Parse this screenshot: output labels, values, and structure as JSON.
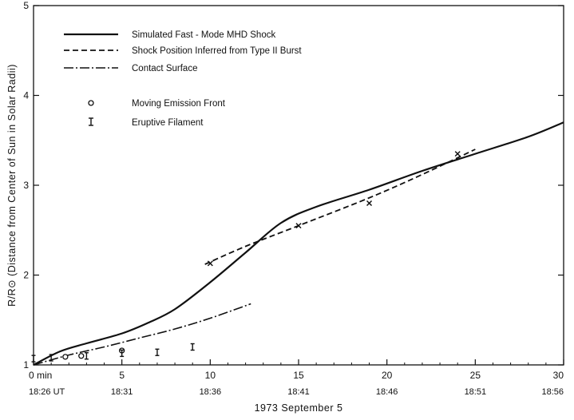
{
  "chart_data": {
    "type": "line",
    "title": "",
    "xlabel": "1973  September 5",
    "ylabel": "R/R⊙  (Distance from Center of Sun in Solar Radii)",
    "xlim": [
      0,
      30
    ],
    "ylim": [
      1,
      5
    ],
    "grid": false,
    "legend_position": "top-left",
    "x_ticks": [
      0,
      5,
      10,
      15,
      20,
      25,
      30
    ],
    "x_tick_labels": [
      "0 min",
      "5",
      "10",
      "15",
      "20",
      "25",
      "30"
    ],
    "x_time_labels": [
      "18:26 UT",
      "18:31",
      "18:36",
      "18:41",
      "18:46",
      "18:51",
      "18:56"
    ],
    "y_ticks": [
      1,
      2,
      3,
      4,
      5
    ],
    "y_tick_labels": [
      "1",
      "2",
      "3",
      "4",
      "5"
    ],
    "series": [
      {
        "name": "Simulated Fast - Mode MHD Shock",
        "style": "solid",
        "x": [
          0,
          1.5,
          3,
          5,
          6.5,
          8,
          10,
          12,
          14,
          16,
          19,
          22,
          25,
          28,
          30
        ],
        "y": [
          1.0,
          1.15,
          1.24,
          1.35,
          1.47,
          1.62,
          1.92,
          2.25,
          2.58,
          2.76,
          2.95,
          3.16,
          3.35,
          3.54,
          3.7
        ]
      },
      {
        "name": "Shock Position Inferred from Type II Burst",
        "style": "dashed",
        "x": [
          9.7,
          12,
          15,
          19,
          22,
          25
        ],
        "y": [
          2.12,
          2.32,
          2.55,
          2.86,
          3.12,
          3.4
        ]
      },
      {
        "name": "Contact Surface",
        "style": "dash-dot",
        "x": [
          0,
          2,
          4,
          6,
          8,
          10,
          12.3
        ],
        "y": [
          1.0,
          1.11,
          1.2,
          1.3,
          1.4,
          1.52,
          1.68
        ]
      },
      {
        "name": "Moving Emission Front",
        "style": "circle",
        "x": [
          1.8,
          2.7,
          5
        ],
        "y": [
          1.09,
          1.1,
          1.16
        ]
      },
      {
        "name": "Eruptive Filament",
        "style": "errorbar",
        "x": [
          0,
          1,
          3,
          5,
          7,
          9
        ],
        "y": [
          1.07,
          1.08,
          1.1,
          1.13,
          1.14,
          1.2
        ]
      }
    ],
    "shock_data_points": {
      "x": [
        10,
        15,
        19,
        24
      ],
      "y": [
        2.13,
        2.55,
        2.8,
        3.35
      ]
    }
  }
}
